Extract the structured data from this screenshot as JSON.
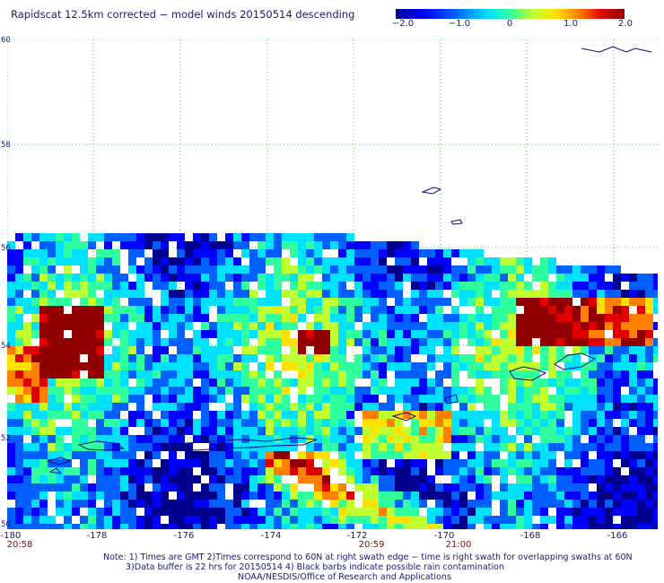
{
  "title": "Rapidscat 12.5km corrected − model winds 20150514 descending",
  "colorbar": {
    "labels": [
      "−2.0",
      "−1.0",
      "0",
      "1.0",
      "2.0"
    ],
    "min": -2.0,
    "max": 2.0,
    "colors": [
      "#00008f",
      "#0000ff",
      "#0060ff",
      "#00e0ff",
      "#30ffa0",
      "#c0ff30",
      "#ffe000",
      "#ff8000",
      "#e00000",
      "#900000"
    ]
  },
  "map": {
    "lon_range": [
      -180,
      -165
    ],
    "lat_range": [
      50,
      60
    ],
    "x_ticks": [
      "-180",
      "-178",
      "-176",
      "-174",
      "-172",
      "-170",
      "-168",
      "-166"
    ],
    "y_ticks": [
      "60",
      "58",
      "56",
      "54",
      "52",
      "50"
    ],
    "swath_times": [
      "20:58",
      "20:59",
      "21:00"
    ]
  },
  "notes": {
    "line1": "Note: 1) Times are GMT 2)Times correspond to 60N at right swath edge − time is right swath for overlapping swaths at 60N",
    "line2": "3)Data buffer is 22 hrs for 20150514 4) Black barbs indicate possible rain contamination",
    "line3": "NOAA/NESDIS/Office of Research and Applications"
  }
}
